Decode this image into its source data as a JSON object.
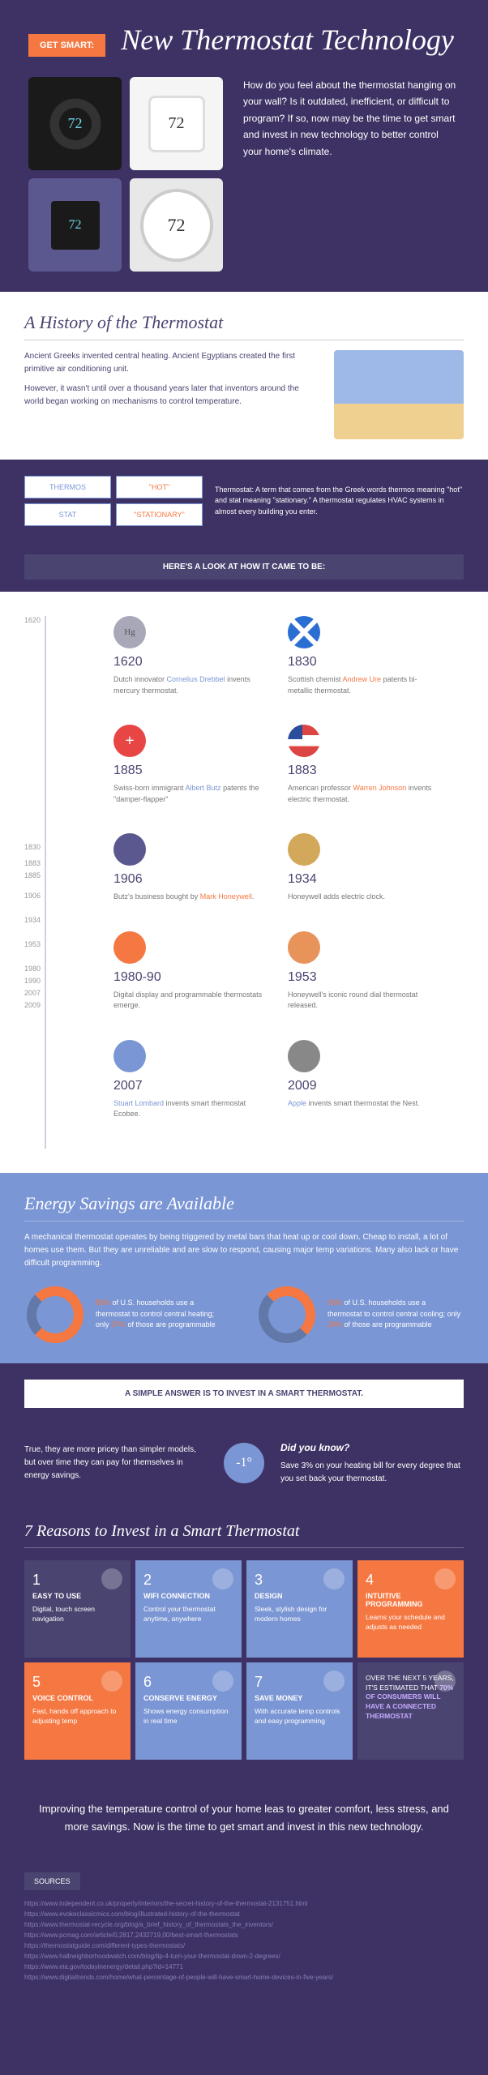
{
  "hero": {
    "badge": "GET SMART:",
    "title": "New Thermostat Technology",
    "temps": [
      "72",
      "72",
      "72",
      "72"
    ],
    "intro": "How do you feel about the thermostat hanging on your wall? Is it outdated, inefficient, or difficult to program? If so, now may be the time to get smart and invest in new technology to better control your home's climate."
  },
  "history": {
    "heading": "A History of the Thermostat",
    "p1": "Ancient Greeks invented central heating. Ancient Egyptians created the first primitive air conditioning unit.",
    "p2": "However, it wasn't until over a thousand years later that inventors around the world began working on mechanisms to control temperature.",
    "terms": {
      "t1": "THERMOS",
      "t2": "\"HOT\"",
      "t3": "STAT",
      "t4": "\"STATIONARY\""
    },
    "def": "Thermostat: A term that comes from the Greek words thermos meaning \"hot\" and stat meaning \"stationary.\" A thermostat regulates HVAC systems in almost every building you enter.",
    "timeline_hdr": "HERE'S A LOOK AT HOW IT CAME TO BE:"
  },
  "axis": [
    "1620",
    "1830",
    "1883",
    "1885",
    "1906",
    "1934",
    "1953",
    "1980",
    "1990",
    "2007",
    "2009"
  ],
  "tl": [
    {
      "year": "1620",
      "txt": "Dutch innovator <span class='hl-b'>Cornelius Drebbel</span> invents mercury thermostat.",
      "icon": "i-hg"
    },
    {
      "year": "1830",
      "txt": "Scottish chemist <span class='hl-o'>Andrew Ure</span> patents bi-metallic thermostat.",
      "icon": "i-scot"
    },
    {
      "year": "1885",
      "txt": "Swiss-born immigrant <span class='hl-b'>Albert Butz</span> patents the \"damper-flapper\"",
      "icon": "i-swiss"
    },
    {
      "year": "1883",
      "txt": "American professor <span class='hl-o'>Warren Johnson</span> invents electric thermostat.",
      "icon": "i-usa"
    },
    {
      "year": "1906",
      "txt": "Butz's business bought by <span class='hl-o'>Mark Honeywell</span>.",
      "icon": "i-dial"
    },
    {
      "year": "1934",
      "txt": "Honeywell adds electric clock.",
      "icon": "i-clock"
    },
    {
      "year": "1980-90",
      "txt": "Digital display and programmable thermostats emerge.",
      "icon": "i-digital"
    },
    {
      "year": "1953",
      "txt": "Honeywell's iconic round dial thermostat released.",
      "icon": "i-round"
    },
    {
      "year": "2007",
      "txt": "<span class='hl-b'>Stuart Lombard</span> invents smart thermostat Ecobee.",
      "icon": "i-eco"
    },
    {
      "year": "2009",
      "txt": "<span class='hl-b'>Apple</span> invents smart thermostat the Nest.",
      "icon": "i-apple"
    }
  ],
  "energy": {
    "heading": "Energy Savings are Available",
    "p": "A mechanical thermostat operates by being triggered by metal bars that heat up or cool down. Cheap to install, a lot of homes use them. But they are unreliable and are slow to respond, causing major temp variations. Many also lack or have difficult programming.",
    "d1": "<span class='pct'>85%</span> of U.S. households use a thermostat to control central heating; only <span class='pct'>37%</span> of those are programmable",
    "d2": "<span class='pct'>60%</span> of U.S. households use a thermostat to control central cooling; only <span class='pct'>29%</span> of those are programmable",
    "simple": "A SIMPLE ANSWER IS TO INVEST IN A SMART THERMOSTAT."
  },
  "dyk": {
    "left": "True, they are more pricey than simpler models, but over time they can pay for themselves in energy savings.",
    "icon": "-1°",
    "title": "Did you know?",
    "body": "Save 3% on your heating bill for every degree that you set back your thermostat."
  },
  "reasons": {
    "heading": "7 Reasons to Invest in a Smart Thermostat",
    "cards": [
      {
        "n": "1",
        "t": "EASY TO USE",
        "d": "Digital, touch screen navigation",
        "c": "c-dark"
      },
      {
        "n": "2",
        "t": "WIFI CONNECTION",
        "d": "Control your thermostat anytime, anywhere",
        "c": "c-blue"
      },
      {
        "n": "3",
        "t": "DESIGN",
        "d": "Sleek, stylish design for modern homes",
        "c": "c-blue"
      },
      {
        "n": "4",
        "t": "INTUITIVE PROGRAMMING",
        "d": "Learns your schedule and adjusts as needed",
        "c": "c-orange"
      },
      {
        "n": "5",
        "t": "VOICE CONTROL",
        "d": "Fast, hands off approach to adjusting temp",
        "c": "c-orange"
      },
      {
        "n": "6",
        "t": "CONSERVE ENERGY",
        "d": "Shows energy consumption in real time",
        "c": "c-blue"
      },
      {
        "n": "7",
        "t": "SAVE MONEY",
        "d": "With accurate temp controls and easy programming",
        "c": "c-blue"
      }
    ],
    "stat": "OVER THE NEXT 5 YEARS, IT'S ESTIMATED THAT <span class='pct'>70% OF CONSUMERS WILL HAVE A CONNECTED THERMOSTAT</span>"
  },
  "closing": "Improving the temperature control of your home leas to greater comfort, less stress, and more savings. Now is the time to get smart and invest in this new technology.",
  "sources": {
    "label": "SOURCES",
    "links": [
      "https://www.independent.co.uk/property/interiors/the-secret-history-of-the-thermostat-2131751.html",
      "https://www.evokeclassicmics.com/blog/illustrated-history-of-the-thermostat",
      "https://www.thermostat-recycle.org/blog/a_brief_history_of_thermostats_the_inventors/",
      "https://www.pcmag.com/article/0,2817,2432719,00/best-smart-thermostats",
      "https://thermostatguide.com/different-types-thermostats/",
      "https://www.hallneighborhoodwatch.com/blog/tip-4-turn-your-thermostat-down-2-degrees/",
      "https://www.eia.gov/todayinenergy/detail.php?id=14771",
      "https://www.digitaltrends.com/home/what-percentage-of-people-will-have-smart-home-devices-in-five-years/"
    ]
  }
}
